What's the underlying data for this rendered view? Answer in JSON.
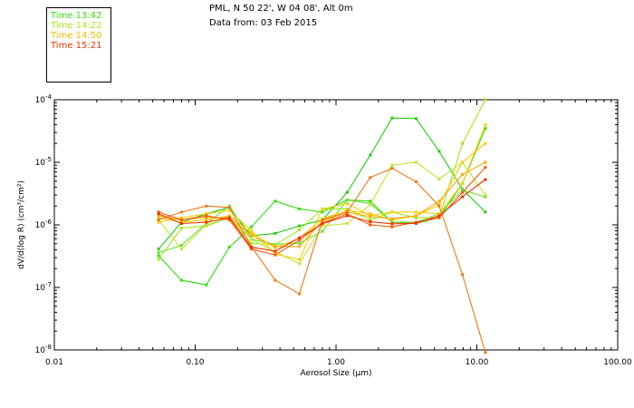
{
  "header": {
    "location": "PML, N 50 22', W 04 08', Alt 0m",
    "date": "Data from: 03 Feb 2015"
  },
  "colors": {
    "t1342": "#33dd11",
    "t1422": "#a8e81a",
    "t1450": "#f0b800",
    "t1521": "#ee3300",
    "background": "#ffffff",
    "axis": "#000000"
  },
  "chart_data": {
    "type": "line",
    "title": "",
    "xlabel": "Aerosol Size (µm)",
    "ylabel": "dV/d(log R) (cm³/cm²)",
    "xscale": "log",
    "yscale": "log",
    "xlim": [
      0.01,
      100
    ],
    "ylim": [
      1e-08,
      0.0001
    ],
    "x_tick_labels": [
      "0.01",
      "0.10",
      "1.00",
      "10.00",
      "100.00"
    ],
    "y_tick_labels": [
      {
        "mantissa": "10",
        "exp": "-8"
      },
      {
        "mantissa": "10",
        "exp": "-7"
      },
      {
        "mantissa": "10",
        "exp": "-6"
      },
      {
        "mantissa": "10",
        "exp": "-5"
      },
      {
        "mantissa": "10",
        "exp": "-4"
      }
    ],
    "legend": [
      {
        "label": "Time 13:42",
        "color": "#33dd11"
      },
      {
        "label": "Time 14:22",
        "color": "#a8e81a"
      },
      {
        "label": "Time 14:50",
        "color": "#f0b800"
      },
      {
        "label": "Time 15:21",
        "color": "#ee3300"
      }
    ],
    "x": [
      0.055,
      0.08,
      0.12,
      0.175,
      0.25,
      0.37,
      0.55,
      0.8,
      1.2,
      1.75,
      2.5,
      3.7,
      5.4,
      7.9,
      11.5
    ],
    "series": [
      {
        "name": "13:42 a",
        "color": "#33dd11",
        "values": [
          3.2e-07,
          1.3e-07,
          1.1e-07,
          4.4e-07,
          9.3e-07,
          2.4e-06,
          1.8e-06,
          1.6e-06,
          2.5e-06,
          2.4e-06,
          1.1e-06,
          1.05e-06,
          1.3e-06,
          4.6e-06,
          3.5e-05
        ]
      },
      {
        "name": "13:42 b",
        "color": "#22cc11",
        "values": [
          4.1e-07,
          1.1e-06,
          1.5e-06,
          1.9e-06,
          6.7e-07,
          7.3e-07,
          9.6e-07,
          1.2e-06,
          3.3e-06,
          1.3e-05,
          5.1e-05,
          5e-05,
          1.5e-05,
          3.7e-06,
          1.6e-06
        ]
      },
      {
        "name": "13:42 c",
        "color": "#66e033",
        "values": [
          3.6e-07,
          4.7e-07,
          1.05e-06,
          2e-06,
          5.9e-07,
          4.9e-07,
          5.1e-07,
          7.9e-07,
          2.5e-06,
          2.2e-06,
          1.1e-06,
          1.1e-06,
          1.5e-06,
          3.6e-06,
          2.8e-06
        ]
      },
      {
        "name": "14:22 a",
        "color": "#9ee81a",
        "values": [
          2.8e-07,
          8.9e-07,
          9.6e-07,
          1.3e-06,
          5.1e-07,
          4.8e-07,
          8.3e-07,
          1.8e-06,
          1.8e-06,
          1.2e-06,
          1.6e-06,
          1.3e-06,
          1.3e-06,
          2e-05,
          0.0001
        ]
      },
      {
        "name": "14:22 b",
        "color": "#c8e030",
        "values": [
          1.2e-06,
          4.1e-07,
          1e-06,
          1.3e-06,
          5.9e-07,
          3.7e-07,
          2.4e-07,
          9.6e-07,
          1.05e-06,
          2.1e-06,
          9e-06,
          1e-05,
          5.4e-06,
          1e-05,
          3e-06
        ]
      },
      {
        "name": "14:50 a",
        "color": "#f5d000",
        "values": [
          1.1e-06,
          1.3e-06,
          1.5e-06,
          1.7e-06,
          8.1e-07,
          3.4e-07,
          2.8e-07,
          1.8e-06,
          2.2e-06,
          1.4e-06,
          1.6e-06,
          1.6e-06,
          1.5e-06,
          4.6e-06,
          4e-05
        ]
      },
      {
        "name": "14:50 b",
        "color": "#ffc400",
        "values": [
          1.3e-06,
          1.1e-06,
          1.2e-06,
          1.4e-06,
          7.4e-07,
          4.3e-07,
          6.1e-07,
          1.25e-06,
          1.7e-06,
          1.5e-06,
          1.2e-06,
          1.4e-06,
          2.1e-06,
          1e-05,
          2e-05
        ]
      },
      {
        "name": "14:50 c",
        "color": "#ffaa00",
        "values": [
          1.4e-06,
          1.2e-06,
          1.3e-06,
          1.3e-06,
          6.8e-07,
          4.5e-07,
          4.5e-07,
          1.15e-06,
          1.6e-06,
          1.35e-06,
          1.25e-06,
          1.4e-06,
          2.4e-06,
          6.4e-06,
          1e-05
        ]
      },
      {
        "name": "15:21 a",
        "color": "#ee7711",
        "values": [
          1.2e-06,
          1.6e-06,
          2e-06,
          1.9e-06,
          4.5e-07,
          1.3e-07,
          7.9e-08,
          1.2e-06,
          1.6e-06,
          5.7e-06,
          8e-06,
          4.9e-06,
          2e-06,
          1.6e-07,
          9.1e-09
        ]
      },
      {
        "name": "15:21 b",
        "color": "#ff5500",
        "values": [
          1.6e-06,
          1.2e-06,
          1.4e-06,
          1.2e-06,
          4.1e-07,
          3.3e-07,
          5.7e-07,
          1.07e-06,
          1.5e-06,
          1e-06,
          9.3e-07,
          1.1e-06,
          1.3e-06,
          3.3e-06,
          8.3e-06
        ]
      },
      {
        "name": "15:21 c",
        "color": "#ee3300",
        "values": [
          1.5e-06,
          1.05e-06,
          1.1e-06,
          1.3e-06,
          4.4e-07,
          3.8e-07,
          6.2e-07,
          1.04e-06,
          1.4e-06,
          1.12e-06,
          1.04e-06,
          1.06e-06,
          1.4e-06,
          2.8e-06,
          5.3e-06
        ]
      }
    ]
  }
}
